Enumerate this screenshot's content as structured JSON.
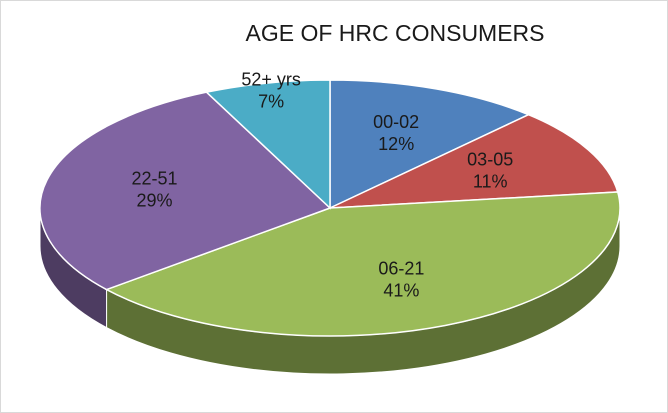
{
  "chart_data": {
    "type": "pie",
    "title": "AGE OF HRC CONSUMERS",
    "categories": [
      "00-02",
      "03-05",
      "06-21",
      "22-51",
      "52+ yrs"
    ],
    "values": [
      12,
      11,
      41,
      29,
      7
    ],
    "value_labels": [
      "12%",
      "11%",
      "41%",
      "29%",
      "7%"
    ],
    "colors": [
      "#4f81bd",
      "#c0504d",
      "#9bbb59",
      "#8064a2",
      "#4bacc6"
    ]
  }
}
